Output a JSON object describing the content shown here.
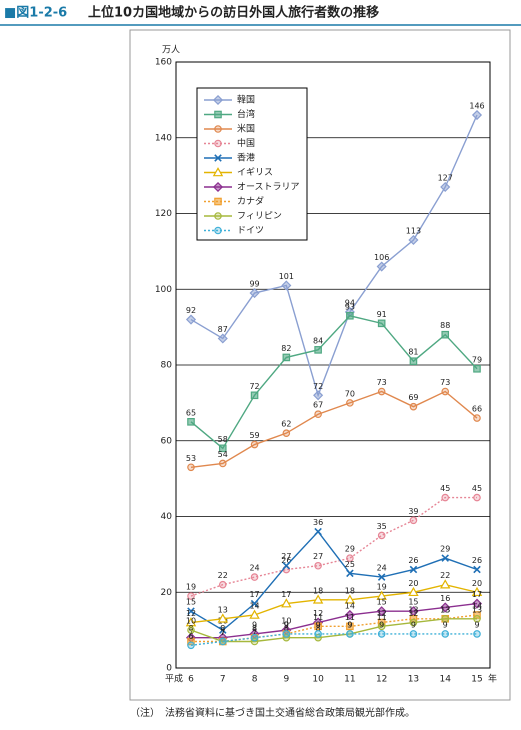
{
  "chart_data": {
    "type": "line",
    "figure_label": "■図1-2-6",
    "title": "上位10カ国地域からの訪日外国人旅行者数の推移",
    "y_unit": "万人",
    "x_prefix": "平成",
    "x_suffix": "年",
    "note": "（注）　法務省資料に基づき国土交通省総合政策局観光部作成。",
    "categories": [
      "6",
      "7",
      "8",
      "9",
      "10",
      "11",
      "12",
      "13",
      "14",
      "15"
    ],
    "ylim": [
      0,
      160
    ],
    "yticks": [
      0,
      20,
      40,
      60,
      80,
      100,
      120,
      140,
      160
    ],
    "grid": true,
    "series": [
      {
        "name": "韓国",
        "color": "#8a9fd1",
        "marker": "diamond",
        "dashed": false,
        "values": [
          92,
          87,
          99,
          101,
          72,
          94,
          106,
          113,
          127,
          146
        ]
      },
      {
        "name": "台湾",
        "color": "#4fa882",
        "marker": "square",
        "dashed": false,
        "values": [
          65,
          58,
          72,
          82,
          84,
          93,
          91,
          81,
          88,
          79
        ]
      },
      {
        "name": "米国",
        "color": "#e0884e",
        "marker": "circle",
        "dashed": false,
        "values": [
          53,
          54,
          59,
          62,
          67,
          70,
          73,
          69,
          73,
          66
        ]
      },
      {
        "name": "中国",
        "color": "#e68595",
        "marker": "circle",
        "dashed": true,
        "values": [
          19,
          22,
          24,
          26,
          27,
          29,
          35,
          39,
          45,
          45
        ]
      },
      {
        "name": "香港",
        "color": "#1f6fb5",
        "marker": "x",
        "dashed": false,
        "values": [
          15,
          10,
          17,
          27,
          36,
          25,
          24,
          26,
          29,
          26
        ]
      },
      {
        "name": "イギリス",
        "color": "#e3b400",
        "marker": "triangle",
        "dashed": false,
        "values": [
          12,
          13,
          14,
          17,
          18,
          18,
          19,
          20,
          22,
          20
        ]
      },
      {
        "name": "オーストラリア",
        "color": "#8b2f8f",
        "marker": "diamond",
        "dashed": false,
        "values": [
          8,
          8,
          9,
          10,
          12,
          14,
          15,
          15,
          16,
          17
        ]
      },
      {
        "name": "カナダ",
        "color": "#f0a030",
        "marker": "square",
        "dashed": true,
        "values": [
          7,
          7,
          8,
          9,
          11,
          11,
          12,
          13,
          13,
          14
        ]
      },
      {
        "name": "フィリピン",
        "color": "#a6b83c",
        "marker": "circle",
        "dashed": false,
        "values": [
          10,
          7,
          7,
          8,
          8,
          9,
          11,
          12,
          13,
          13
        ]
      },
      {
        "name": "ドイツ",
        "color": "#3fb0d8",
        "marker": "circle",
        "dashed": true,
        "values": [
          6,
          7,
          8,
          9,
          9,
          9,
          9,
          9,
          9,
          9
        ]
      }
    ]
  }
}
